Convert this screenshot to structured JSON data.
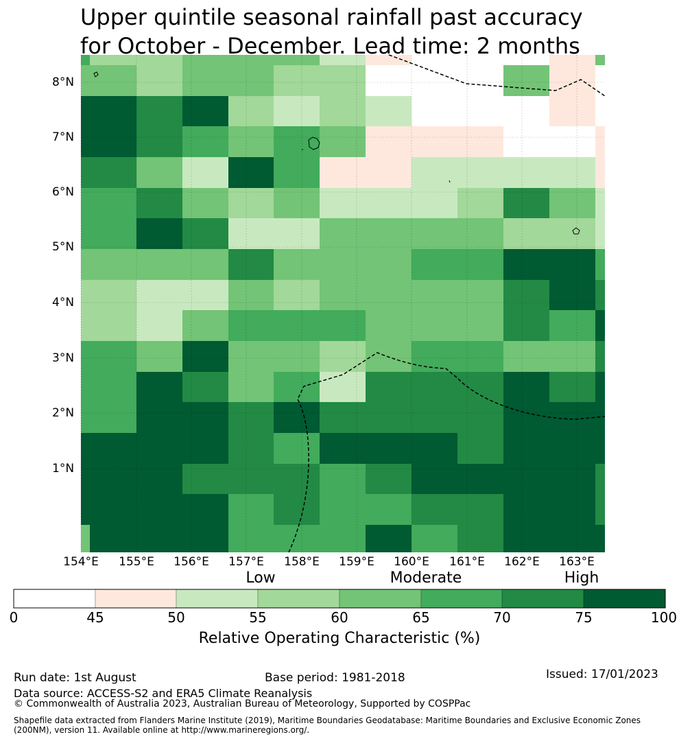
{
  "title_line1": "Upper quintile seasonal rainfall past accuracy",
  "title_line2": "for October - December. Lead time: 2 months",
  "map": {
    "lon_range": [
      154.0,
      163.5
    ],
    "lat_range": [
      -0.01,
      8.5
    ],
    "lon_ticks": [
      "154°E",
      "155°E",
      "156°E",
      "157°E",
      "158°E",
      "159°E",
      "160°E",
      "161°E",
      "162°E",
      "163°E"
    ],
    "lat_ticks": [
      "1°N",
      "2°N",
      "3°N",
      "4°N",
      "5°N",
      "6°N",
      "7°N",
      "8°N"
    ],
    "bin_colors": [
      "#ffffff",
      "#fee8dd",
      "#c8e9c0",
      "#a2d899",
      "#73c476",
      "#42ab5c",
      "#228a44",
      "#005a32"
    ]
  },
  "colorbar": {
    "boundaries": [
      0,
      45,
      50,
      55,
      60,
      65,
      70,
      75,
      100
    ],
    "tick_labels": [
      "0",
      "45",
      "50",
      "55",
      "60",
      "65",
      "70",
      "75",
      "100"
    ],
    "colors": [
      "#ffffff",
      "#fee8dd",
      "#c8e9c0",
      "#a2d899",
      "#73c476",
      "#42ab5c",
      "#228a44",
      "#005a32"
    ],
    "category_labels": [
      "Low",
      "Moderate",
      "High"
    ],
    "title": "Relative Operating Characteristic (%)"
  },
  "footer": {
    "run_date": "Run date: 1st August",
    "base_period": "Base period: 1981-2018",
    "issued": "Issued: 17/01/2023",
    "data_source": "Data source: ACCESS-S2 and ERA5 Climate Reanalysis",
    "copyright": "© Commonwealth of Australia 2023, Australian Bureau of Meteorology, Supported by COSPPac",
    "shapefile_line1": "Shapefile data extracted from Flanders Marine Institute (2019), Maritime Boundaries Geodatabase: Maritime Boundaries and Exclusive Economic Zones",
    "shapefile_line2": "(200NM), version 11. Available online at http://www.marineregions.org/."
  }
}
